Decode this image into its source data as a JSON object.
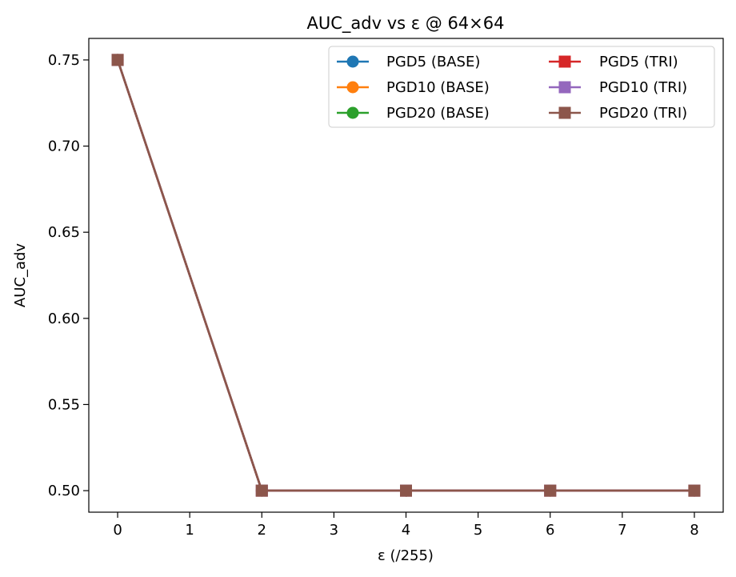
{
  "chart_data": {
    "type": "line",
    "title": "AUC_adv vs ε @ 64×64",
    "xlabel": "ε (/255)",
    "ylabel": "AUC_adv",
    "xlim": [
      -0.4,
      8.4
    ],
    "ylim": [
      0.4875,
      0.7625
    ],
    "xticks": [
      0,
      1,
      2,
      3,
      4,
      5,
      6,
      7,
      8
    ],
    "xtick_labels": [
      "0",
      "1",
      "2",
      "3",
      "4",
      "5",
      "6",
      "7",
      "8"
    ],
    "yticks": [
      0.5,
      0.55,
      0.6,
      0.65,
      0.7,
      0.75
    ],
    "ytick_labels": [
      "0.50",
      "0.55",
      "0.60",
      "0.65",
      "0.70",
      "0.75"
    ],
    "grid": false,
    "legend_position": "upper right",
    "legend_columns": 2,
    "x": [
      0,
      2,
      4,
      6,
      8
    ],
    "series": [
      {
        "name": "PGD5 (BASE)",
        "values": [
          0.75,
          0.5,
          0.5,
          0.5,
          0.5
        ],
        "color": "#1f77b4",
        "marker": "circle"
      },
      {
        "name": "PGD10 (BASE)",
        "values": [
          0.75,
          0.5,
          0.5,
          0.5,
          0.5
        ],
        "color": "#ff7f0e",
        "marker": "circle"
      },
      {
        "name": "PGD20 (BASE)",
        "values": [
          0.75,
          0.5,
          0.5,
          0.5,
          0.5
        ],
        "color": "#2ca02c",
        "marker": "circle"
      },
      {
        "name": "PGD5 (TRI)",
        "values": [
          0.75,
          0.5,
          0.5,
          0.5,
          0.5
        ],
        "color": "#d62728",
        "marker": "square"
      },
      {
        "name": "PGD10 (TRI)",
        "values": [
          0.75,
          0.5,
          0.5,
          0.5,
          0.5
        ],
        "color": "#9467bd",
        "marker": "square"
      },
      {
        "name": "PGD20 (TRI)",
        "values": [
          0.75,
          0.5,
          0.5,
          0.5,
          0.5
        ],
        "color": "#8c564b",
        "marker": "square"
      }
    ]
  }
}
